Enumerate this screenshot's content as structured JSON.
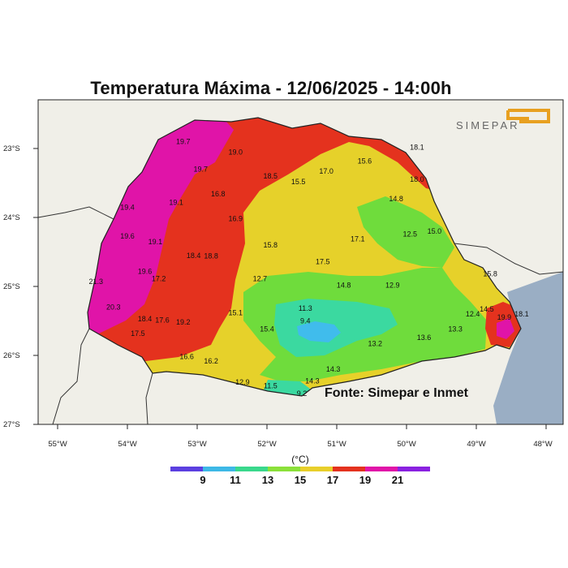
{
  "title": "Temperatura Máxima - 12/06/2025 - 14:00h",
  "logo_text": "SIMEPAR",
  "source": "Fonte: Simepar e Inmet",
  "lat_ticks": [
    "23°S",
    "24°S",
    "25°S",
    "26°S",
    "27°S"
  ],
  "lon_ticks": [
    "55°W",
    "54°W",
    "53°W",
    "52°W",
    "51°W",
    "50°W",
    "49°W",
    "48°W"
  ],
  "legend": {
    "unit": "(°C)",
    "labels": [
      "9",
      "11",
      "13",
      "15",
      "17",
      "19",
      "21"
    ],
    "colors": [
      "#5b3fe0",
      "#3db8e6",
      "#3ad88c",
      "#8be03a",
      "#e8cf2a",
      "#e4321e",
      "#8a21e0"
    ]
  },
  "colors": {
    "ocean": "#9aaec4",
    "land": "#f0efe8",
    "hot_magenta": "#e014a8",
    "red": "#e4321e",
    "yellow": "#e6d12a",
    "green": "#6fdc3c",
    "aqua": "#3bd9a0",
    "cyan": "#40bcec"
  },
  "stations": [
    {
      "value": "19.7",
      "lon": -53.2,
      "lat": -22.9
    },
    {
      "value": "19.0",
      "lon": -52.45,
      "lat": -23.05
    },
    {
      "value": "19.7",
      "lon": -52.95,
      "lat": -23.3
    },
    {
      "value": "18.5",
      "lon": -51.95,
      "lat": -23.4
    },
    {
      "value": "17.0",
      "lon": -51.15,
      "lat": -23.33
    },
    {
      "value": "15.6",
      "lon": -50.6,
      "lat": -23.18
    },
    {
      "value": "18.1",
      "lon": -49.85,
      "lat": -22.98
    },
    {
      "value": "15.5",
      "lon": -51.55,
      "lat": -23.48
    },
    {
      "value": "18.0",
      "lon": -49.85,
      "lat": -23.45
    },
    {
      "value": "16.8",
      "lon": -52.7,
      "lat": -23.66
    },
    {
      "value": "19.1",
      "lon": -53.3,
      "lat": -23.78
    },
    {
      "value": "19.4",
      "lon": -54.0,
      "lat": -23.85
    },
    {
      "value": "14.8",
      "lon": -50.15,
      "lat": -23.73
    },
    {
      "value": "16.9",
      "lon": -52.45,
      "lat": -24.02
    },
    {
      "value": "12.5",
      "lon": -49.95,
      "lat": -24.24
    },
    {
      "value": "15.0",
      "lon": -49.6,
      "lat": -24.2
    },
    {
      "value": "17.1",
      "lon": -50.7,
      "lat": -24.31
    },
    {
      "value": "19.6",
      "lon": -54.0,
      "lat": -24.27
    },
    {
      "value": "19.1",
      "lon": -53.6,
      "lat": -24.35
    },
    {
      "value": "15.8",
      "lon": -51.95,
      "lat": -24.4
    },
    {
      "value": "18.4",
      "lon": -53.05,
      "lat": -24.55
    },
    {
      "value": "18.8",
      "lon": -52.8,
      "lat": -24.56
    },
    {
      "value": "17.5",
      "lon": -51.2,
      "lat": -24.64
    },
    {
      "value": "19.6",
      "lon": -53.75,
      "lat": -24.78
    },
    {
      "value": "15.8",
      "lon": -48.8,
      "lat": -24.82
    },
    {
      "value": "17.2",
      "lon": -53.55,
      "lat": -24.89
    },
    {
      "value": "12.7",
      "lon": -52.1,
      "lat": -24.89
    },
    {
      "value": "21.3",
      "lon": -54.45,
      "lat": -24.93
    },
    {
      "value": "14.8",
      "lon": -50.9,
      "lat": -24.98
    },
    {
      "value": "12.9",
      "lon": -50.2,
      "lat": -24.98
    },
    {
      "value": "11.3",
      "lon": -51.45,
      "lat": -25.32
    },
    {
      "value": "20.3",
      "lon": -54.2,
      "lat": -25.3
    },
    {
      "value": "14.5",
      "lon": -48.85,
      "lat": -25.33
    },
    {
      "value": "12.4",
      "lon": -49.05,
      "lat": -25.4
    },
    {
      "value": "19.9",
      "lon": -48.6,
      "lat": -25.45
    },
    {
      "value": "18.1",
      "lon": -48.35,
      "lat": -25.4
    },
    {
      "value": "15.1",
      "lon": -52.45,
      "lat": -25.38
    },
    {
      "value": "9.4",
      "lon": -51.45,
      "lat": -25.5
    },
    {
      "value": "18.4",
      "lon": -53.75,
      "lat": -25.47
    },
    {
      "value": "17.6",
      "lon": -53.5,
      "lat": -25.49
    },
    {
      "value": "19.2",
      "lon": -53.2,
      "lat": -25.52
    },
    {
      "value": "15.4",
      "lon": -52.0,
      "lat": -25.62
    },
    {
      "value": "13.3",
      "lon": -49.3,
      "lat": -25.62
    },
    {
      "value": "17.5",
      "lon": -53.85,
      "lat": -25.68
    },
    {
      "value": "13.6",
      "lon": -49.75,
      "lat": -25.74
    },
    {
      "value": "13.2",
      "lon": -50.45,
      "lat": -25.83
    },
    {
      "value": "16.6",
      "lon": -53.15,
      "lat": -26.02
    },
    {
      "value": "16.2",
      "lon": -52.8,
      "lat": -26.08
    },
    {
      "value": "14.3",
      "lon": -51.05,
      "lat": -26.2
    },
    {
      "value": "12.9",
      "lon": -52.35,
      "lat": -26.39
    },
    {
      "value": "14.3",
      "lon": -51.35,
      "lat": -26.37
    },
    {
      "value": "11.5",
      "lon": -51.95,
      "lat": -26.44
    },
    {
      "value": "9.2",
      "lon": -51.5,
      "lat": -26.55
    }
  ]
}
